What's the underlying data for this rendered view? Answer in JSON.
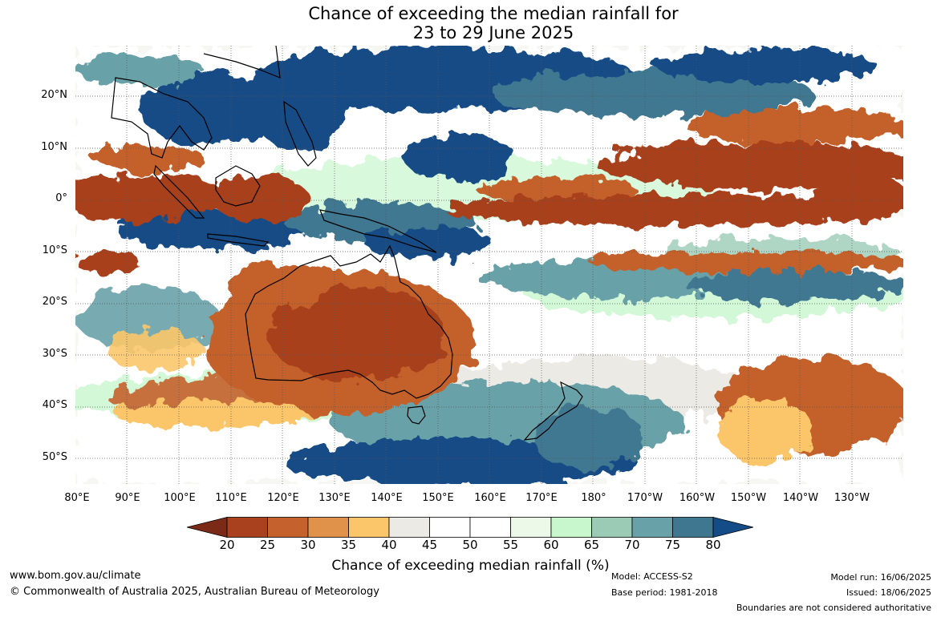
{
  "title": {
    "line1": "Chance of exceeding the median rainfall for",
    "line2": "23 to 29 June 2025"
  },
  "map": {
    "lat_labels": [
      "20°N",
      "10°N",
      "0°",
      "10°S",
      "20°S",
      "30°S",
      "40°S",
      "50°S"
    ],
    "lon_labels": [
      "80°E",
      "90°E",
      "100°E",
      "110°E",
      "120°E",
      "130°E",
      "140°E",
      "150°E",
      "160°E",
      "170°E",
      "180°",
      "170°W",
      "160°W",
      "150°W",
      "140°W",
      "130°W"
    ]
  },
  "legend": {
    "title": "Chance of exceeding median rainfall (%)",
    "labels": [
      "20",
      "25",
      "30",
      "35",
      "40",
      "45",
      "50",
      "55",
      "60",
      "65",
      "70",
      "75",
      "80"
    ],
    "colors": [
      "#7b2a17",
      "#a9411f",
      "#c4612c",
      "#e0914a",
      "#fbc66a",
      "#eceae5",
      "#ffffff",
      "#ffffff",
      "#ecf8e8",
      "#c8f6cd",
      "#9bcbb5",
      "#68a1a8",
      "#3f7791",
      "#134c86"
    ]
  },
  "footer": {
    "website": "www.bom.gov.au/climate",
    "copyright": "© Commonwealth of Australia 2025, Australian Bureau of Meteorology",
    "model": "Model: ACCESS-S2",
    "base_period": "Base period: 1981-2018",
    "model_run": "Model run: 16/06/2025",
    "issued": "Issued: 18/06/2025",
    "boundaries": "Boundaries are not considered authoritative"
  }
}
